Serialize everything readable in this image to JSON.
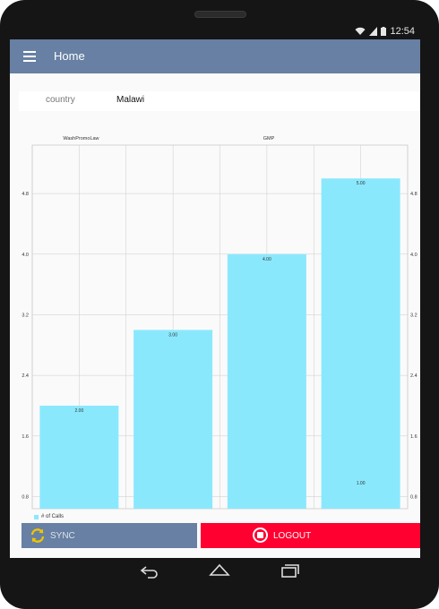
{
  "status": {
    "time": "12:54"
  },
  "appbar": {
    "title": "Home"
  },
  "filter": {
    "label": "country",
    "value": "Malawi"
  },
  "chart_data": {
    "type": "bar",
    "top_labels": [
      "WashPromoLaw",
      "GMP"
    ],
    "categories": [
      "",
      "",
      "",
      ""
    ],
    "series": [
      {
        "name": "# of Calls",
        "values": [
          2,
          3,
          4,
          5
        ],
        "labels": [
          "2.00",
          "3.00",
          "4.00",
          "5.00"
        ]
      }
    ],
    "extra_label": "1.00",
    "yticks": [
      "0.8",
      "1.6",
      "2.4",
      "3.2",
      "4.0",
      "4.8"
    ],
    "ylim": [
      0.64,
      5.44
    ],
    "bar_color": "#8ae8fd"
  },
  "legend": {
    "label": "# of Calls"
  },
  "buttons": {
    "sync": "SYNC",
    "logout": "LOGOUT"
  },
  "colors": {
    "appbar": "#6780a3",
    "logout": "#ff0030",
    "bar": "#8ae8fd"
  }
}
